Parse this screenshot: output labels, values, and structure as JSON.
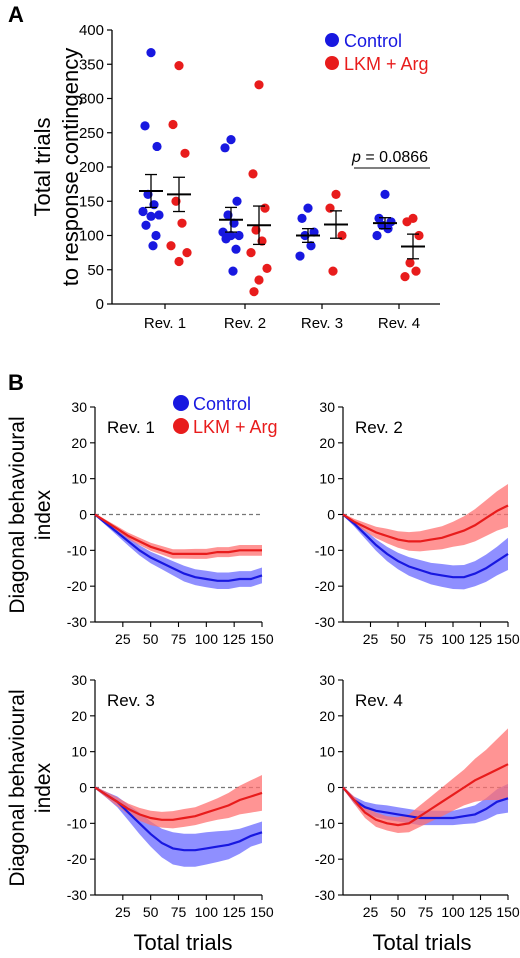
{
  "panels": {
    "a_label": "A",
    "b_label": "B"
  },
  "colors": {
    "control": "#1818e0",
    "lkm": "#e81c1c",
    "control_band": "#6a6aff",
    "lkm_band": "#ff7070"
  },
  "chart_data": [
    {
      "type": "scatter",
      "panel": "A",
      "ylabel_line1": "Total trials",
      "ylabel_line2": "to response contingency",
      "ylim": [
        0,
        400
      ],
      "yticks": [
        0,
        50,
        100,
        150,
        200,
        250,
        300,
        350,
        400
      ],
      "categories": [
        "Rev. 1",
        "Rev. 2",
        "Rev. 3",
        "Rev. 4"
      ],
      "legend_placement": "top-right",
      "annotation": {
        "p_label": "p",
        "p_value": " = 0.0866",
        "between": "Rev. 4"
      },
      "series": [
        {
          "name": "Control",
          "points": [
            [
              367,
              260,
              230,
              160,
              145,
              135,
              130,
              128,
              115,
              100,
              85
            ],
            [
              240,
              228,
              150,
              130,
              118,
              105,
              100,
              100,
              95,
              80,
              48
            ],
            [
              140,
              125,
              105,
              100,
              85,
              70
            ],
            [
              160,
              125,
              120,
              115,
              110,
              100
            ]
          ],
          "mean": [
            165,
            123,
            100,
            118
          ],
          "sem": [
            24,
            18,
            10,
            8
          ]
        },
        {
          "name": "LKM + Arg",
          "points": [
            [
              348,
              262,
              220,
              150,
              118,
              85,
              75,
              62
            ],
            [
              320,
              190,
              140,
              108,
              92,
              75,
              52,
              35,
              18
            ],
            [
              160,
              140,
              100,
              48
            ],
            [
              125,
              120,
              100,
              60,
              48,
              40
            ]
          ],
          "mean": [
            160,
            115,
            116,
            84
          ],
          "sem": [
            25,
            28,
            20,
            18
          ]
        }
      ]
    },
    {
      "type": "line",
      "panel": "B",
      "title": "Rev. 1",
      "ylabel": "Diagonal behavioural index",
      "xlabel": "",
      "ylim": [
        -30,
        30
      ],
      "xlim": [
        0,
        150
      ],
      "legend_placement": "top-center",
      "x": [
        0,
        10,
        20,
        30,
        40,
        50,
        60,
        70,
        80,
        90,
        100,
        110,
        120,
        130,
        140,
        150
      ],
      "series": [
        {
          "name": "Control",
          "values": [
            0,
            -2.5,
            -5,
            -7.5,
            -10,
            -12,
            -13.5,
            -15,
            -16.5,
            -17.5,
            -18,
            -18.5,
            -18.5,
            -18,
            -18,
            -17
          ],
          "err": [
            0.3,
            0.6,
            0.9,
            1.2,
            1.4,
            1.6,
            1.8,
            2,
            2.2,
            2.2,
            2.3,
            2.3,
            2.3,
            2.2,
            2.2,
            2.2
          ]
        },
        {
          "name": "LKM + Arg",
          "values": [
            0,
            -2,
            -4,
            -6,
            -7.5,
            -9,
            -10,
            -11,
            -11,
            -11,
            -11,
            -10.5,
            -10.5,
            -10,
            -10,
            -10
          ],
          "err": [
            0.3,
            0.5,
            0.7,
            0.9,
            1,
            1.1,
            1.2,
            1.3,
            1.3,
            1.4,
            1.4,
            1.4,
            1.4,
            1.5,
            1.5,
            1.5
          ]
        }
      ]
    },
    {
      "type": "line",
      "panel": "B",
      "title": "Rev. 2",
      "ylim": [
        -30,
        30
      ],
      "xlim": [
        0,
        150
      ],
      "x": [
        0,
        10,
        20,
        30,
        40,
        50,
        60,
        70,
        80,
        90,
        100,
        110,
        120,
        130,
        140,
        150
      ],
      "series": [
        {
          "name": "Control",
          "values": [
            0,
            -2.5,
            -5.5,
            -8.5,
            -11,
            -13,
            -14.5,
            -15.5,
            -16.5,
            -17,
            -17.5,
            -17.5,
            -16.5,
            -15,
            -13,
            -11
          ],
          "err": [
            0.3,
            0.8,
            1.2,
            1.6,
            2,
            2.3,
            2.6,
            2.8,
            3,
            3.2,
            3.3,
            3.4,
            3.5,
            3.8,
            4,
            4.5
          ]
        },
        {
          "name": "LKM + Arg",
          "values": [
            0,
            -2,
            -3.5,
            -5,
            -6,
            -7,
            -7.5,
            -7.5,
            -7,
            -6.5,
            -5.5,
            -4.5,
            -3,
            -1,
            1,
            2.5
          ],
          "err": [
            0.3,
            0.8,
            1.2,
            1.6,
            2,
            2.3,
            2.6,
            2.8,
            3,
            3.2,
            3.5,
            4,
            4.5,
            5,
            5.5,
            6
          ]
        }
      ]
    },
    {
      "type": "line",
      "panel": "B",
      "title": "Rev. 3",
      "ylabel": "Diagonal behavioural index",
      "xlabel": "Total trials",
      "ylim": [
        -30,
        30
      ],
      "xlim": [
        0,
        150
      ],
      "x": [
        0,
        10,
        20,
        30,
        40,
        50,
        60,
        70,
        80,
        90,
        100,
        110,
        120,
        130,
        140,
        150
      ],
      "series": [
        {
          "name": "Control",
          "values": [
            0,
            -2,
            -4,
            -7,
            -10,
            -13,
            -15.5,
            -17,
            -17.5,
            -17.5,
            -17,
            -16.5,
            -16,
            -15,
            -13.5,
            -12.5
          ],
          "err": [
            0.3,
            0.8,
            1.5,
            2.2,
            3,
            3.5,
            4,
            4.5,
            4.6,
            4.6,
            4.5,
            4.3,
            4,
            3.5,
            3,
            3
          ]
        },
        {
          "name": "LKM + Arg",
          "values": [
            0,
            -2,
            -4,
            -6,
            -7.5,
            -8.5,
            -9,
            -9,
            -8.5,
            -8,
            -7,
            -6,
            -5,
            -3.5,
            -2.5,
            -1.5
          ],
          "err": [
            0.3,
            0.8,
            1.2,
            1.5,
            1.8,
            2,
            2.2,
            2.4,
            2.5,
            2.5,
            2.7,
            3,
            3.5,
            4,
            4.5,
            5
          ]
        }
      ]
    },
    {
      "type": "line",
      "panel": "B",
      "title": "Rev. 4",
      "xlabel": "Total trials",
      "ylim": [
        -30,
        30
      ],
      "xlim": [
        0,
        150
      ],
      "x": [
        0,
        10,
        20,
        30,
        40,
        50,
        60,
        70,
        80,
        90,
        100,
        110,
        120,
        130,
        140,
        150
      ],
      "series": [
        {
          "name": "Control",
          "values": [
            0,
            -3.5,
            -5.5,
            -6.5,
            -7,
            -7.5,
            -8,
            -8.5,
            -8.5,
            -8.5,
            -8.5,
            -8,
            -7.5,
            -6,
            -4,
            -3
          ],
          "err": [
            0.3,
            1,
            1.5,
            1.8,
            2,
            2,
            2,
            2,
            2,
            2,
            2,
            2.2,
            2.5,
            3,
            3.5,
            4
          ]
        },
        {
          "name": "LKM + Arg",
          "values": [
            0,
            -3.5,
            -7,
            -9,
            -10,
            -10.5,
            -10,
            -8,
            -6,
            -4,
            -2,
            0,
            2,
            3.5,
            5,
            6.5
          ],
          "err": [
            0.3,
            1,
            1.5,
            2,
            2,
            2.2,
            2.5,
            3,
            3.5,
            4,
            4.5,
            5,
            6,
            7,
            8.5,
            10
          ]
        }
      ]
    }
  ],
  "b_axes": {
    "xticks": [
      25,
      50,
      75,
      100,
      125,
      150
    ],
    "yticks": [
      -30,
      -20,
      -10,
      0,
      10,
      20,
      30
    ]
  }
}
